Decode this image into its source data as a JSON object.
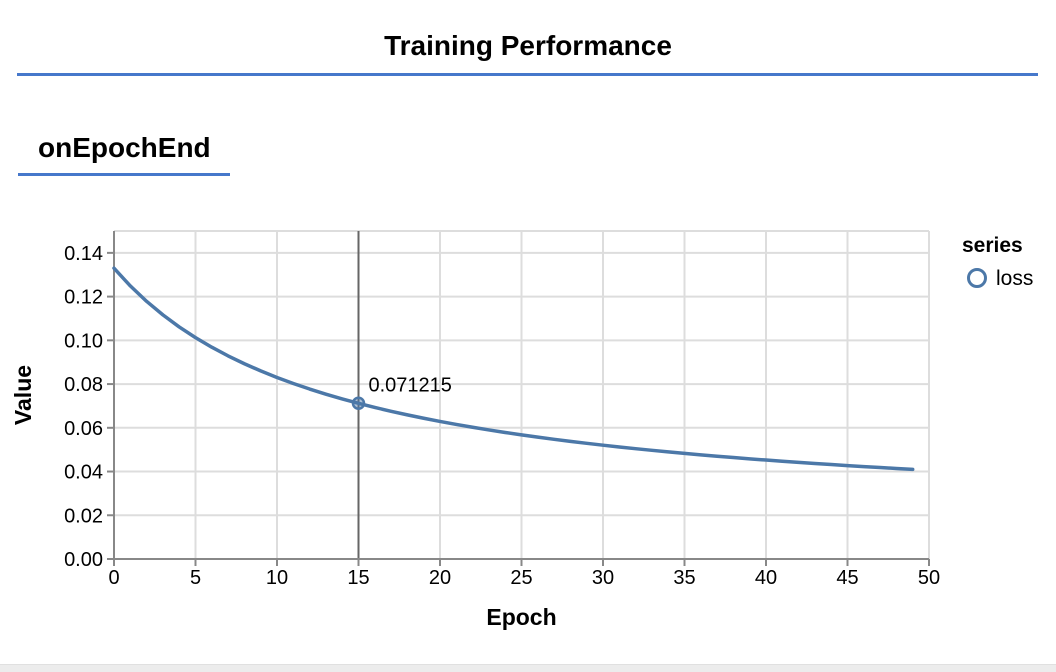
{
  "header": {
    "title": "Training Performance"
  },
  "section": {
    "heading": "onEpochEnd"
  },
  "colors": {
    "accent_blue": "#4678cb",
    "series_line": "#4c78a8",
    "grid": "#dddddd",
    "axis": "#888888",
    "rule": "#666666",
    "text": "#000000",
    "bottom_bar": "#ececec"
  },
  "chart_data": {
    "type": "line",
    "title": "",
    "xlabel": "Epoch",
    "ylabel": "Value",
    "xlim": [
      0,
      50
    ],
    "ylim": [
      0,
      0.15
    ],
    "grid": true,
    "x_ticks": [
      0,
      5,
      10,
      15,
      20,
      25,
      30,
      35,
      40,
      45,
      50
    ],
    "y_ticks": [
      0,
      0.02,
      0.04,
      0.06,
      0.08,
      0.1,
      0.12,
      0.14
    ],
    "y_tick_format": "0.00",
    "legend": {
      "position": "right",
      "title": "series",
      "entries": [
        {
          "label": "loss",
          "color": "#4c78a8",
          "symbol": "circle"
        }
      ]
    },
    "series": [
      {
        "name": "loss",
        "color": "#4c78a8",
        "epochs": [
          0,
          1,
          2,
          3,
          4,
          5,
          6,
          7,
          8,
          9,
          10,
          11,
          12,
          13,
          14,
          15,
          16,
          17,
          18,
          19,
          20,
          21,
          22,
          23,
          24,
          25,
          26,
          27,
          28,
          29,
          30,
          31,
          32,
          33,
          34,
          35,
          36,
          37,
          38,
          39,
          40,
          41,
          42,
          43,
          44,
          45,
          46,
          47,
          48,
          49
        ],
        "values": [
          0.13299,
          0.124891,
          0.117833,
          0.111632,
          0.106141,
          0.101244,
          0.09685,
          0.092886,
          0.089291,
          0.086016,
          0.08302,
          0.080269,
          0.077734,
          0.07539,
          0.073217,
          0.071215,
          0.069314,
          0.067554,
          0.065907,
          0.06436,
          0.062906,
          0.061537,
          0.060244,
          0.059023,
          0.057867,
          0.056771,
          0.05573,
          0.054741,
          0.0538,
          0.052903,
          0.052047,
          0.05123,
          0.050448,
          0.049701,
          0.048984,
          0.048297,
          0.047639,
          0.047006,
          0.046398,
          0.045813,
          0.045249,
          0.044707,
          0.044184,
          0.04368,
          0.043193,
          0.042723,
          0.042268,
          0.041829,
          0.041403,
          0.040992
        ]
      }
    ],
    "highlight": {
      "x": 15,
      "value": 0.071215,
      "label": "0.071215"
    }
  }
}
